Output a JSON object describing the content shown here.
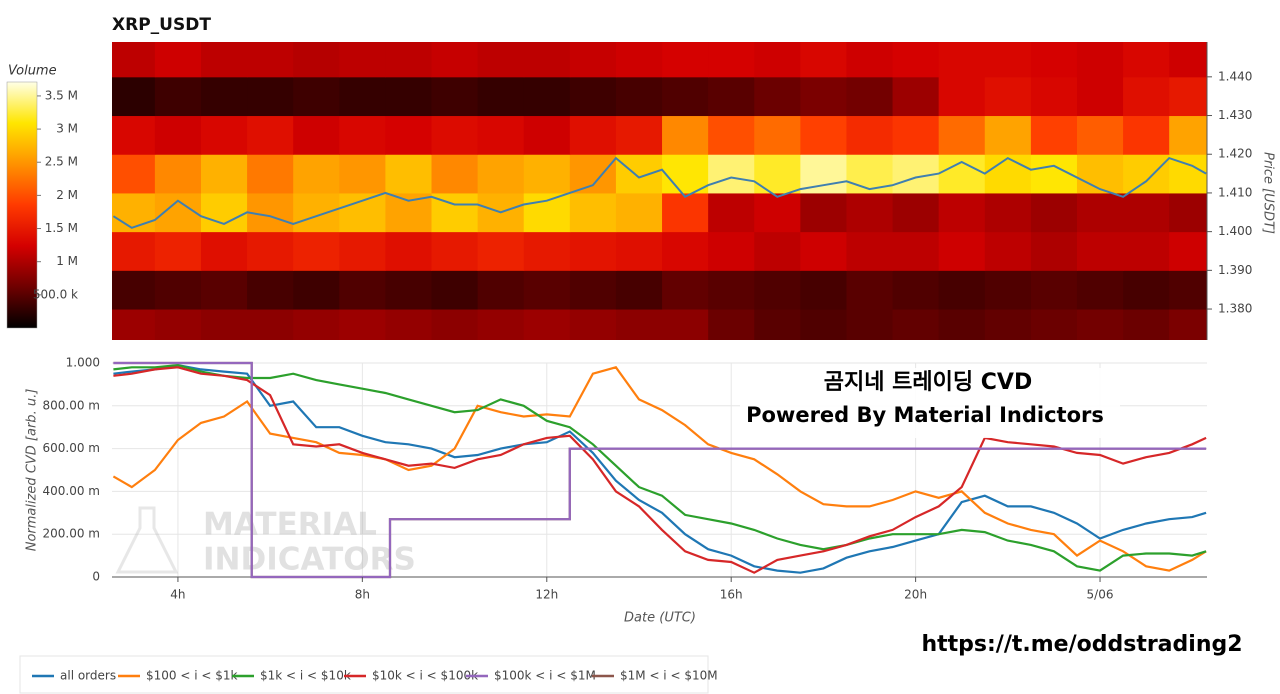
{
  "title": "XRP_USDT",
  "charts": [
    {
      "type": "heatmap",
      "colorbar_title": "Volume",
      "y_label": "Price [USDT]",
      "xlim": [
        2.57,
        26.32
      ],
      "ylim": [
        1.372,
        1.449
      ],
      "yticks": [
        {
          "value": 1.38,
          "label": "1.380"
        },
        {
          "value": 1.39,
          "label": "1.390"
        },
        {
          "value": 1.4,
          "label": "1.400"
        },
        {
          "value": 1.41,
          "label": "1.410"
        },
        {
          "value": 1.42,
          "label": "1.420"
        },
        {
          "value": 1.43,
          "label": "1.430"
        },
        {
          "value": 1.44,
          "label": "1.440"
        }
      ],
      "zlim": [
        0,
        3710000
      ],
      "zticks": [
        {
          "value": 500000,
          "label": "500.0 k"
        },
        {
          "value": 1000000,
          "label": "1 M"
        },
        {
          "value": 1500000,
          "label": "1.5 M"
        },
        {
          "value": 2000000,
          "label": "2 M"
        },
        {
          "value": 2500000,
          "label": "2.5 M"
        },
        {
          "value": 3000000,
          "label": "3 M"
        },
        {
          "value": 3500000,
          "label": "3.5 M"
        }
      ],
      "colorscale": [
        "#000000",
        "#6e0000",
        "#d40000",
        "#ff3a00",
        "#ff9200",
        "#ffe600",
        "#ffffe6"
      ],
      "x_bins": [
        2.57,
        3.5,
        4.5,
        5.5,
        6.5,
        7.5,
        8.5,
        9.5,
        10.5,
        11.5,
        12.5,
        13.5,
        14.5,
        15.5,
        16.5,
        17.5,
        18.5,
        19.5,
        20.5,
        21.5,
        22.5,
        23.5,
        24.5,
        25.5,
        26.32
      ],
      "y_bins": [
        1.37,
        1.38,
        1.39,
        1.4,
        1.41,
        1.42,
        1.43,
        1.44,
        1.45
      ],
      "z": [
        [
          900000,
          850000,
          800000,
          800000,
          850000,
          900000,
          850000,
          800000,
          850000,
          900000,
          850000,
          800000,
          800000,
          600000,
          500000,
          450000,
          500000,
          550000,
          500000,
          550000,
          600000,
          650000,
          600000,
          700000
        ],
        [
          400000,
          450000,
          500000,
          400000,
          350000,
          450000,
          400000,
          350000,
          450000,
          500000,
          450000,
          400000,
          550000,
          500000,
          450000,
          400000,
          500000,
          450000,
          400000,
          450000,
          500000,
          450000,
          400000,
          450000
        ],
        [
          1500000,
          1600000,
          1400000,
          1500000,
          1600000,
          1500000,
          1400000,
          1500000,
          1600000,
          1500000,
          1450000,
          1400000,
          1300000,
          1200000,
          1100000,
          1200000,
          1100000,
          1100000,
          1200000,
          1100000,
          1000000,
          1100000,
          1100000,
          1200000
        ],
        [
          2700000,
          2600000,
          2900000,
          2500000,
          2700000,
          2800000,
          2600000,
          2900000,
          2700000,
          3000000,
          2800000,
          2700000,
          1800000,
          1100000,
          1200000,
          900000,
          1000000,
          900000,
          1100000,
          1000000,
          900000,
          1000000,
          1000000,
          900000
        ],
        [
          2000000,
          2400000,
          2700000,
          2300000,
          2600000,
          2500000,
          2800000,
          2400000,
          2600000,
          2700000,
          2500000,
          2900000,
          3100000,
          3400000,
          3200000,
          3500000,
          3300000,
          3400000,
          3200000,
          3000000,
          3100000,
          2800000,
          2900000,
          3000000
        ],
        [
          1300000,
          1200000,
          1300000,
          1400000,
          1200000,
          1300000,
          1250000,
          1350000,
          1300000,
          1200000,
          1400000,
          1500000,
          2400000,
          2000000,
          2200000,
          1900000,
          1700000,
          1800000,
          2200000,
          2600000,
          1900000,
          2100000,
          1800000,
          2600000
        ],
        [
          250000,
          350000,
          300000,
          300000,
          350000,
          300000,
          300000,
          350000,
          300000,
          300000,
          350000,
          400000,
          450000,
          500000,
          600000,
          700000,
          650000,
          900000,
          1300000,
          1400000,
          1300000,
          1200000,
          1400000,
          1500000
        ],
        [
          1100000,
          1200000,
          1100000,
          1100000,
          1050000,
          1100000,
          1100000,
          1150000,
          1100000,
          1100000,
          1150000,
          1200000,
          1250000,
          1250000,
          1200000,
          1300000,
          1200000,
          1250000,
          1300000,
          1300000,
          1250000,
          1200000,
          1300000,
          1200000
        ]
      ],
      "line": {
        "color": "#3f7fb0",
        "x": [
          2.6,
          3,
          3.5,
          4,
          4.5,
          5,
          5.5,
          6,
          6.5,
          7,
          7.5,
          8,
          8.5,
          9,
          9.5,
          10,
          10.5,
          11,
          11.5,
          12,
          12.5,
          13,
          13.5,
          14,
          14.5,
          15,
          15.5,
          16,
          16.5,
          17,
          17.5,
          18,
          18.5,
          19,
          19.5,
          20,
          20.5,
          21,
          21.5,
          22,
          22.5,
          23,
          23.5,
          24,
          24.5,
          25,
          25.5,
          26,
          26.3
        ],
        "values": [
          1.404,
          1.401,
          1.403,
          1.408,
          1.404,
          1.402,
          1.405,
          1.404,
          1.402,
          1.404,
          1.406,
          1.408,
          1.41,
          1.408,
          1.409,
          1.407,
          1.407,
          1.405,
          1.407,
          1.408,
          1.41,
          1.412,
          1.419,
          1.414,
          1.416,
          1.409,
          1.412,
          1.414,
          1.413,
          1.409,
          1.411,
          1.412,
          1.413,
          1.411,
          1.412,
          1.414,
          1.415,
          1.418,
          1.415,
          1.419,
          1.416,
          1.417,
          1.414,
          1.411,
          1.409,
          1.413,
          1.419,
          1.417,
          1.415
        ]
      }
    },
    {
      "type": "line",
      "x_label": "Date (UTC)",
      "y_label": "Normalized CVD [arb. u.]",
      "xlim": [
        2.57,
        26.32
      ],
      "ylim": [
        0,
        1
      ],
      "xticks": [
        {
          "value": 4,
          "label": "4h"
        },
        {
          "value": 8,
          "label": "8h"
        },
        {
          "value": 12,
          "label": "12h"
        },
        {
          "value": 16,
          "label": "16h"
        },
        {
          "value": 20,
          "label": "20h"
        },
        {
          "value": 24,
          "label": "5/06"
        }
      ],
      "yticks": [
        0,
        {
          "value": 0.2,
          "label": "200.00 m"
        },
        {
          "value": 0.4,
          "label": "400.00 m"
        },
        {
          "value": 0.6,
          "label": "600.00 m"
        },
        {
          "value": 0.8,
          "label": "800.00 m"
        },
        {
          "value": 1,
          "label": "1.000"
        }
      ],
      "grid": true,
      "annotations": [
        "곰지네 트레이딩 CVD",
        "Powered By Material Indictors"
      ],
      "x": [
        2.6,
        3,
        3.5,
        4,
        4.5,
        5,
        5.5,
        6,
        6.5,
        7,
        7.5,
        8,
        8.5,
        9,
        9.5,
        10,
        10.5,
        11,
        11.5,
        12,
        12.5,
        13,
        13.5,
        14,
        14.5,
        15,
        15.5,
        16,
        16.5,
        17,
        17.5,
        18,
        18.5,
        19,
        19.5,
        20,
        20.5,
        21,
        21.5,
        22,
        22.5,
        23,
        23.5,
        24,
        24.5,
        25,
        25.5,
        26,
        26.3
      ],
      "series": [
        {
          "name": "all orders",
          "color": "#1f77b4",
          "values": [
            0.95,
            0.96,
            0.97,
            0.99,
            0.97,
            0.96,
            0.95,
            0.8,
            0.82,
            0.7,
            0.7,
            0.66,
            0.63,
            0.62,
            0.6,
            0.56,
            0.57,
            0.6,
            0.62,
            0.63,
            0.68,
            0.58,
            0.45,
            0.36,
            0.3,
            0.2,
            0.13,
            0.1,
            0.05,
            0.03,
            0.02,
            0.04,
            0.09,
            0.12,
            0.14,
            0.17,
            0.2,
            0.35,
            0.38,
            0.33,
            0.33,
            0.3,
            0.25,
            0.18,
            0.22,
            0.25,
            0.27,
            0.28,
            0.3
          ]
        },
        {
          "name": "$100 < i < $1k",
          "color": "#ff7f0e",
          "values": [
            0.47,
            0.42,
            0.5,
            0.64,
            0.72,
            0.75,
            0.82,
            0.67,
            0.65,
            0.63,
            0.58,
            0.57,
            0.55,
            0.5,
            0.52,
            0.6,
            0.8,
            0.77,
            0.75,
            0.76,
            0.75,
            0.95,
            0.98,
            0.83,
            0.78,
            0.71,
            0.62,
            0.58,
            0.55,
            0.48,
            0.4,
            0.34,
            0.33,
            0.33,
            0.36,
            0.4,
            0.37,
            0.4,
            0.3,
            0.25,
            0.22,
            0.2,
            0.1,
            0.17,
            0.12,
            0.05,
            0.03,
            0.08,
            0.12
          ]
        },
        {
          "name": "$1k < i < $10k",
          "color": "#2ca02c",
          "values": [
            0.97,
            0.98,
            0.98,
            0.99,
            0.96,
            0.94,
            0.93,
            0.93,
            0.95,
            0.92,
            0.9,
            0.88,
            0.86,
            0.83,
            0.8,
            0.77,
            0.78,
            0.83,
            0.8,
            0.73,
            0.7,
            0.62,
            0.52,
            0.42,
            0.38,
            0.29,
            0.27,
            0.25,
            0.22,
            0.18,
            0.15,
            0.13,
            0.15,
            0.18,
            0.2,
            0.2,
            0.2,
            0.22,
            0.21,
            0.17,
            0.15,
            0.12,
            0.05,
            0.03,
            0.1,
            0.11,
            0.11,
            0.1,
            0.12
          ]
        },
        {
          "name": "$10k < i < $100k",
          "color": "#d62728",
          "values": [
            0.94,
            0.95,
            0.97,
            0.98,
            0.95,
            0.94,
            0.92,
            0.85,
            0.62,
            0.61,
            0.62,
            0.58,
            0.55,
            0.52,
            0.53,
            0.51,
            0.55,
            0.57,
            0.62,
            0.65,
            0.66,
            0.55,
            0.4,
            0.33,
            0.22,
            0.12,
            0.08,
            0.07,
            0.02,
            0.08,
            0.1,
            0.12,
            0.15,
            0.19,
            0.22,
            0.28,
            0.33,
            0.42,
            0.65,
            0.63,
            0.62,
            0.61,
            0.58,
            0.57,
            0.53,
            0.56,
            0.58,
            0.62,
            0.65
          ]
        },
        {
          "name": "$100k < i < $1M",
          "color": "#9467bd",
          "x": [
            2.6,
            5.6,
            5.6,
            8.6,
            8.6,
            12.5,
            12.5,
            26.3
          ],
          "values": [
            1,
            1,
            0,
            0,
            0.27,
            0.27,
            0.6,
            0.6
          ]
        },
        {
          "name": "$1M < i < $10M",
          "color": "#8c564b",
          "x": [
            2.6,
            5.6,
            5.6,
            8.6,
            8.6,
            12.5,
            12.5,
            26.3
          ],
          "values": [
            1,
            1,
            0,
            0,
            0.27,
            0.27,
            0.6,
            0.6
          ]
        }
      ]
    }
  ],
  "watermark": [
    "MATERIAL",
    "INDICATORS"
  ],
  "link": "https://t.me/oddstrading2"
}
